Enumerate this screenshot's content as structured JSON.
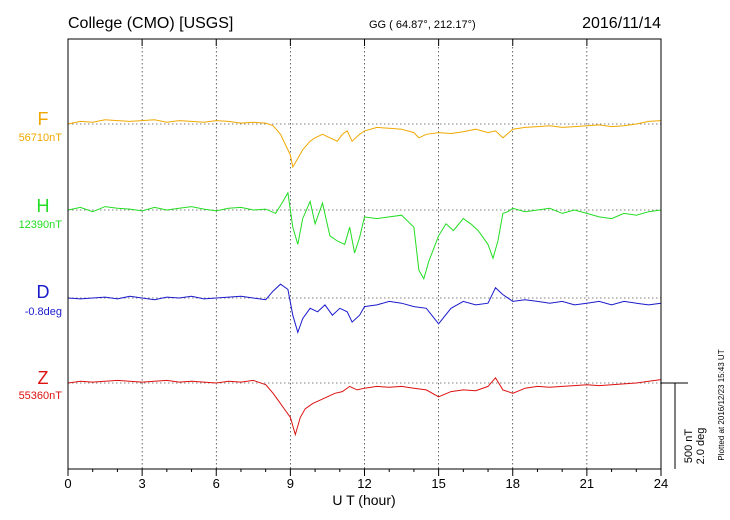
{
  "header": {
    "station": "College (CMO)  [USGS]",
    "coords": "GG ( 64.87°, 212.17°)",
    "date": "2016/11/14"
  },
  "footer_note": "Plotted at 2016/12/23 15:43 UT",
  "scale_bar": {
    "line1": "500 nT",
    "line2": "2.0 deg"
  },
  "chart_data": {
    "type": "line",
    "xlabel": "U T (hour)",
    "xlim": [
      0,
      24
    ],
    "x_ticks": [
      0,
      3,
      6,
      9,
      12,
      15,
      18,
      21,
      24
    ],
    "x_tick_labels": [
      "0",
      "3",
      "6",
      "9",
      "12",
      "15",
      "18",
      "21",
      "24"
    ],
    "grid": true,
    "series": [
      {
        "name": "F",
        "baseline_label": "56710nT",
        "color": "#f0a800",
        "x": [
          0,
          0.5,
          1,
          1.5,
          2,
          2.5,
          3,
          3.5,
          4,
          4.5,
          5,
          5.5,
          6,
          6.5,
          7,
          7.5,
          8,
          8.3,
          8.6,
          8.8,
          9,
          9.1,
          9.3,
          9.5,
          9.8,
          10,
          10.3,
          10.6,
          10.9,
          11.1,
          11.3,
          11.5,
          11.8,
          12,
          12.5,
          13,
          13.5,
          14,
          14.2,
          14.5,
          15,
          15.5,
          16,
          16.5,
          17,
          17.3,
          17.6,
          18,
          18.5,
          19,
          19.5,
          20,
          20.5,
          21,
          21.5,
          22,
          22.5,
          23,
          23.5,
          24
        ],
        "y": [
          0,
          15,
          10,
          25,
          20,
          15,
          20,
          25,
          10,
          20,
          15,
          10,
          20,
          15,
          5,
          10,
          5,
          -10,
          -60,
          -120,
          -180,
          -250,
          -200,
          -150,
          -100,
          -80,
          -60,
          -80,
          -100,
          -60,
          -40,
          -100,
          -60,
          -40,
          -20,
          -25,
          -30,
          -50,
          -80,
          -60,
          -50,
          -55,
          -45,
          -30,
          -50,
          -40,
          -80,
          -30,
          -20,
          -15,
          -10,
          -20,
          -15,
          -10,
          -5,
          -15,
          -10,
          0,
          15,
          20
        ]
      },
      {
        "name": "H",
        "baseline_label": "12390nT",
        "color": "#22dd22",
        "x": [
          0,
          0.5,
          1,
          1.5,
          2,
          2.5,
          3,
          3.5,
          4,
          4.5,
          5,
          5.5,
          6,
          6.5,
          7,
          7.5,
          8,
          8.4,
          8.7,
          8.9,
          9.1,
          9.3,
          9.5,
          9.8,
          10,
          10.3,
          10.6,
          10.9,
          11.2,
          11.4,
          11.6,
          11.8,
          12,
          12.5,
          13,
          13.5,
          14,
          14.2,
          14.4,
          14.6,
          15,
          15.3,
          15.6,
          16,
          16.3,
          16.6,
          17,
          17.2,
          17.4,
          17.6,
          17.8,
          18,
          18.5,
          19,
          19.5,
          20,
          20.5,
          21,
          21.5,
          22,
          22.5,
          23,
          23.5,
          24
        ],
        "y": [
          0,
          15,
          -10,
          20,
          10,
          5,
          -5,
          15,
          0,
          10,
          20,
          5,
          -5,
          10,
          15,
          0,
          5,
          -20,
          50,
          100,
          -100,
          -200,
          -50,
          50,
          -80,
          40,
          -150,
          -180,
          -200,
          -100,
          -250,
          -160,
          -40,
          -50,
          -40,
          -30,
          -100,
          -350,
          -400,
          -300,
          -150,
          -80,
          -120,
          -50,
          -80,
          -120,
          -200,
          -280,
          -180,
          -20,
          -10,
          10,
          -10,
          0,
          10,
          -20,
          0,
          -20,
          -40,
          -50,
          -20,
          -30,
          -10,
          0
        ]
      },
      {
        "name": "D",
        "baseline_label": "-0.8deg",
        "color": "#1a1acc",
        "x": [
          0,
          0.5,
          1,
          1.5,
          2,
          2.5,
          3,
          3.5,
          4,
          4.5,
          5,
          5.5,
          6,
          6.5,
          7,
          7.5,
          8,
          8.3,
          8.6,
          8.9,
          9.1,
          9.3,
          9.5,
          9.8,
          10.1,
          10.4,
          10.7,
          11,
          11.3,
          11.5,
          11.8,
          12,
          12.5,
          13,
          13.5,
          14,
          14.5,
          15,
          15.5,
          16,
          16.5,
          17,
          17.3,
          17.6,
          18,
          18.5,
          19,
          19.5,
          20,
          20.5,
          21,
          21.5,
          22,
          22.5,
          23,
          23.5,
          24
        ],
        "y": [
          0,
          -5,
          0,
          5,
          -5,
          10,
          0,
          -10,
          5,
          0,
          10,
          -5,
          0,
          5,
          10,
          0,
          -10,
          40,
          80,
          50,
          -100,
          -200,
          -120,
          -60,
          -80,
          -40,
          -100,
          -60,
          -80,
          -140,
          -100,
          -50,
          -40,
          -20,
          -30,
          -50,
          -60,
          -150,
          -60,
          -20,
          -40,
          -30,
          60,
          20,
          -20,
          -10,
          -20,
          -30,
          -20,
          -40,
          -30,
          -20,
          -40,
          -20,
          -30,
          -40,
          -30
        ]
      },
      {
        "name": "Z",
        "baseline_label": "55360nT",
        "color": "#dd1111",
        "x": [
          0,
          0.5,
          1,
          1.5,
          2,
          2.5,
          3,
          3.5,
          4,
          4.5,
          5,
          5.5,
          6,
          6.5,
          7,
          7.5,
          8,
          8.3,
          8.6,
          8.8,
          9,
          9.2,
          9.4,
          9.6,
          9.9,
          10.2,
          10.5,
          10.8,
          11.1,
          11.4,
          11.7,
          12,
          12.5,
          13,
          13.5,
          14,
          14.5,
          15,
          15.5,
          16,
          16.5,
          17,
          17.3,
          17.6,
          18,
          18.5,
          19,
          19.5,
          20,
          20.5,
          21,
          21.5,
          22,
          22.5,
          23,
          23.5,
          24
        ],
        "y": [
          0,
          10,
          5,
          10,
          15,
          10,
          5,
          10,
          15,
          5,
          10,
          5,
          0,
          10,
          5,
          15,
          -10,
          -60,
          -120,
          -160,
          -200,
          -300,
          -200,
          -150,
          -120,
          -100,
          -80,
          -60,
          -50,
          -20,
          -40,
          -30,
          -20,
          -25,
          -20,
          -30,
          -40,
          -80,
          -50,
          -40,
          -45,
          -20,
          30,
          -40,
          -60,
          -30,
          -20,
          -25,
          -20,
          -15,
          -10,
          -15,
          -10,
          -5,
          0,
          10,
          20
        ]
      }
    ]
  }
}
